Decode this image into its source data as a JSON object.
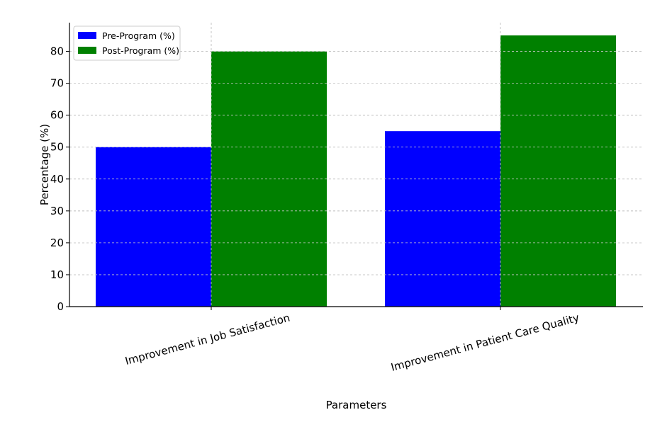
{
  "chart_data": {
    "type": "bar",
    "title": "",
    "xlabel": "Parameters",
    "ylabel": "Percentage (%)",
    "categories": [
      "Improvement in Job Satisfaction",
      "Improvement in Patient Care Quality"
    ],
    "series": [
      {
        "name": "Pre-Program (%)",
        "values": [
          50,
          55
        ],
        "color": "#0000ff"
      },
      {
        "name": "Post-Program (%)",
        "values": [
          80,
          85
        ],
        "color": "#008000"
      }
    ],
    "yticks": [
      0,
      10,
      20,
      30,
      40,
      50,
      60,
      70,
      80
    ],
    "ylim": [
      0,
      89
    ],
    "grid": true,
    "legend_position": "top-left"
  }
}
